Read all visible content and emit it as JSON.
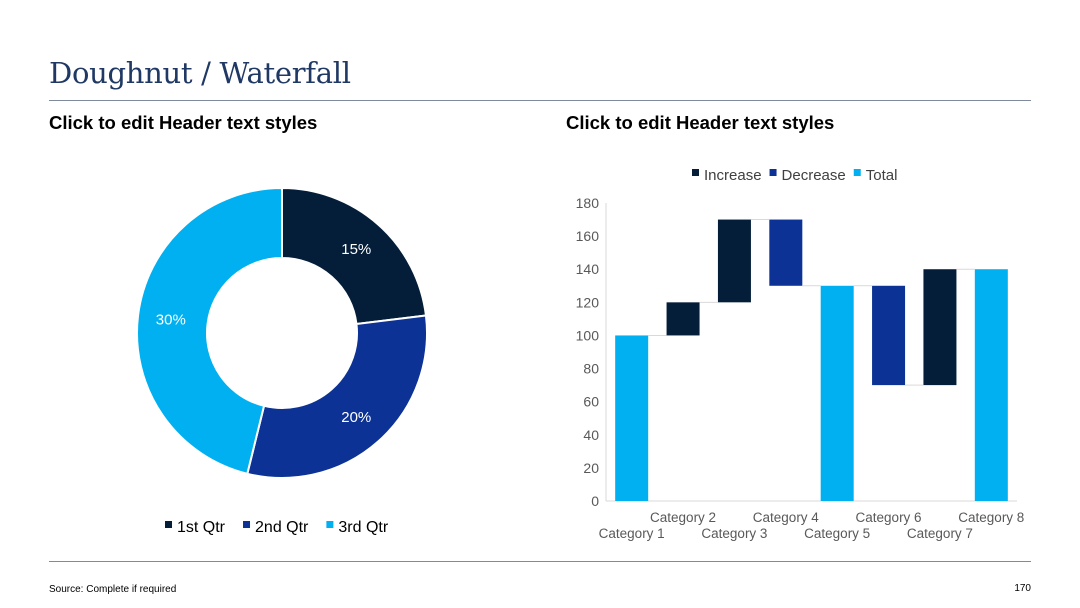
{
  "slide": {
    "title": "Doughnut / Waterfall",
    "left_header": "Click to edit Header text styles",
    "right_header": "Click to edit Header text styles",
    "source": "Source: Complete if required",
    "page_number": "170"
  },
  "colors": {
    "navy": "#041e3a",
    "blue": "#0b3294",
    "cyan": "#00b0f0",
    "title": "#1f3864"
  },
  "chart_data": [
    {
      "type": "pie",
      "style": "doughnut",
      "categories": [
        "1st Qtr",
        "2nd Qtr",
        "3rd Qtr"
      ],
      "values": [
        15,
        20,
        30
      ],
      "labels": [
        "15%",
        "20%",
        "30%"
      ],
      "colors": [
        "#041e3a",
        "#0b3294",
        "#00b0f0"
      ],
      "legend": "bottom"
    },
    {
      "type": "bar",
      "style": "waterfall",
      "categories": [
        "Category 1",
        "Category 2",
        "Category 3",
        "Category 4",
        "Category 5",
        "Category 6",
        "Category 7",
        "Category 8"
      ],
      "series": [
        {
          "name": "Increase",
          "color": "#041e3a",
          "ranges": [
            null,
            [
              100,
              120
            ],
            [
              120,
              170
            ],
            null,
            null,
            null,
            [
              70,
              140
            ],
            null
          ]
        },
        {
          "name": "Decrease",
          "color": "#0b3294",
          "ranges": [
            null,
            null,
            null,
            [
              170,
              130
            ],
            null,
            [
              130,
              70
            ],
            null,
            null
          ]
        },
        {
          "name": "Total",
          "color": "#00b0f0",
          "ranges": [
            [
              0,
              100
            ],
            null,
            null,
            null,
            [
              0,
              130
            ],
            null,
            null,
            [
              0,
              140
            ]
          ]
        }
      ],
      "ylim": [
        0,
        180
      ],
      "yticks": [
        0,
        20,
        40,
        60,
        80,
        100,
        120,
        140,
        160,
        180
      ],
      "legend": "top",
      "grid": false
    }
  ]
}
